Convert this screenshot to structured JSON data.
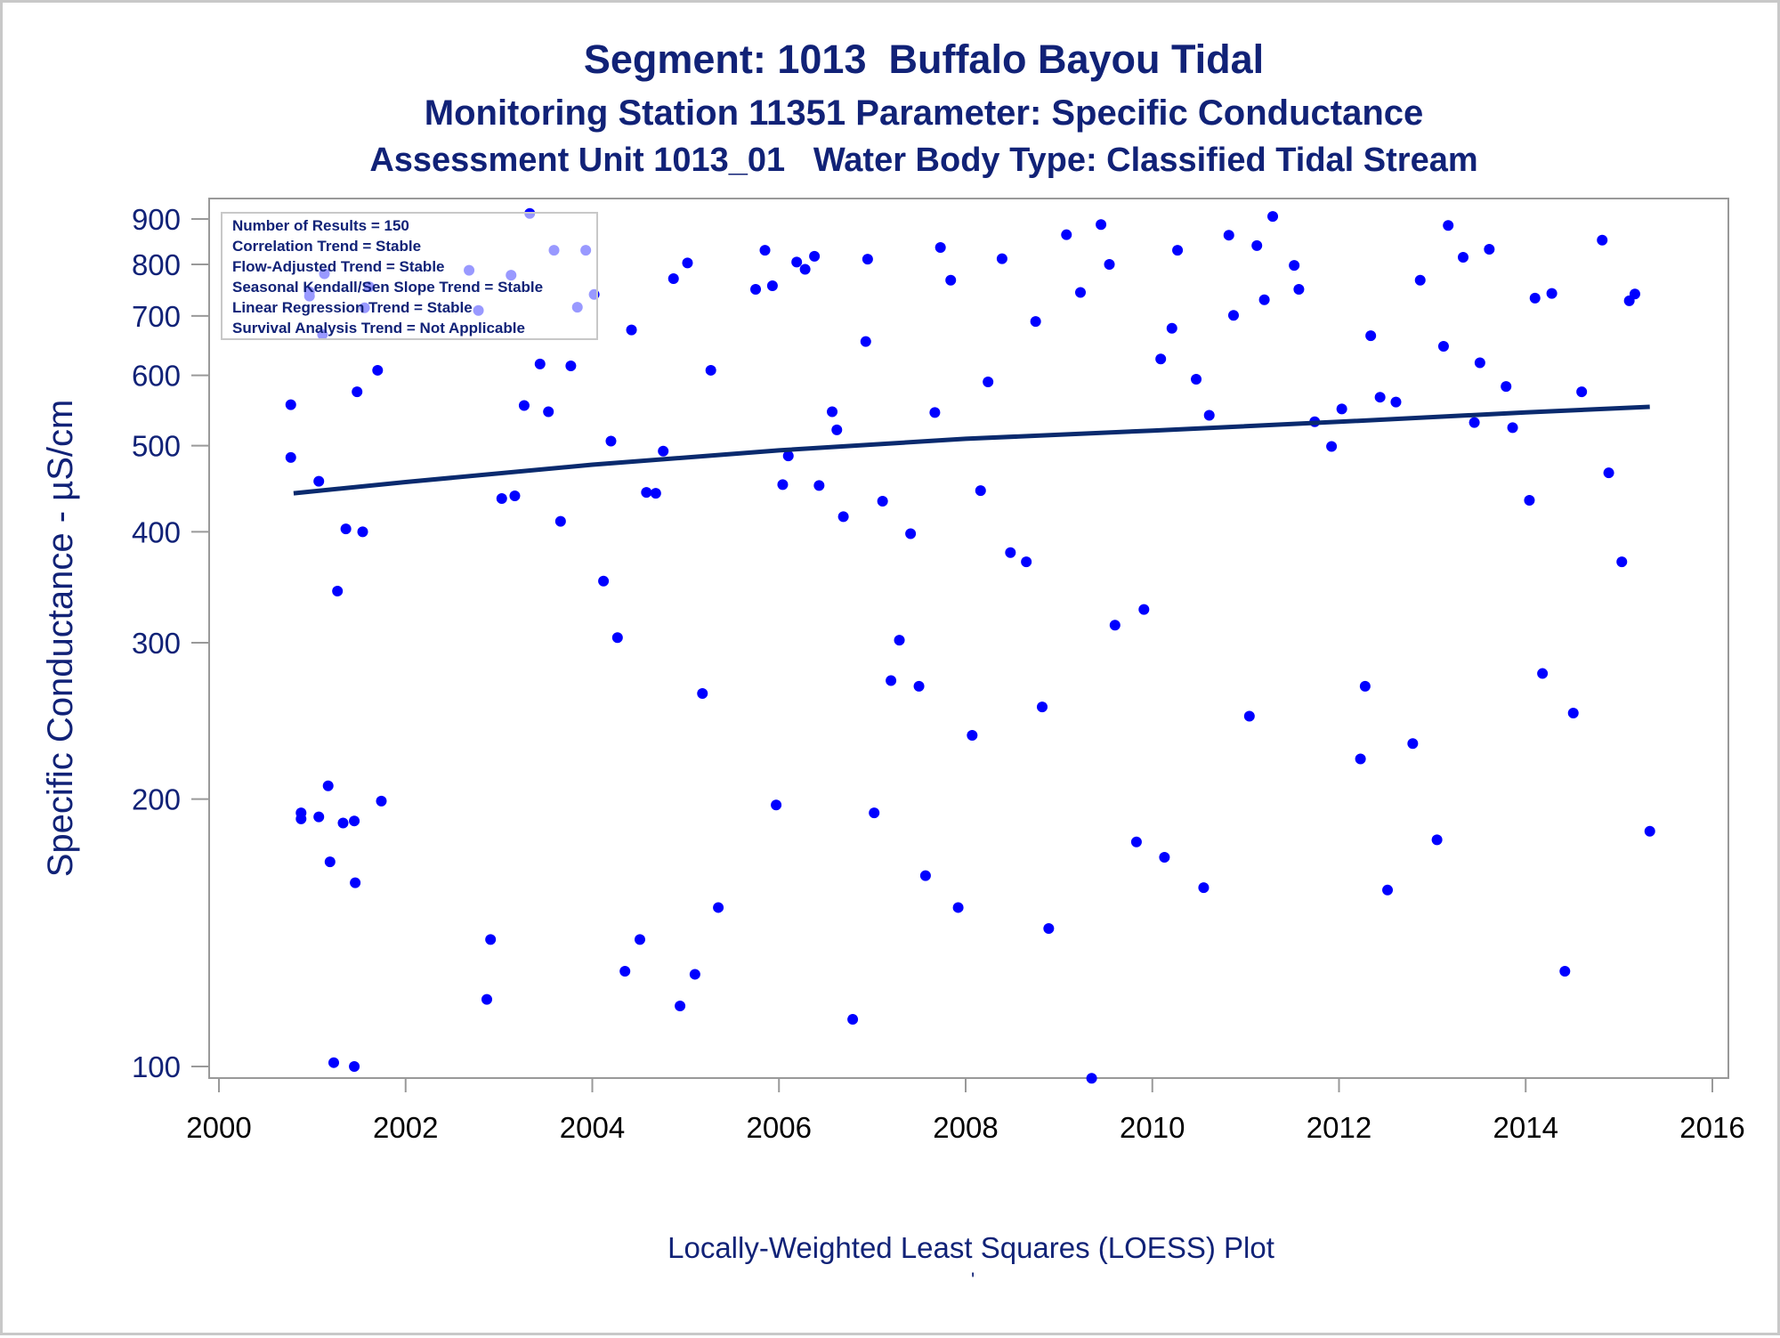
{
  "titles": {
    "line1": "Segment: 1013  Buffalo Bayou Tidal",
    "line2": "Monitoring Station 11351 Parameter: Specific Conductance",
    "line3": "Assessment Unit 1013_01   Water Body Type: Classified Tidal Stream"
  },
  "footnote": "Locally-Weighted Least Squares (LOESS) Plot",
  "footnote_mark": "'",
  "colors": {
    "title": "#112277",
    "points": "#0000ff",
    "trend_line": "#0a2a6e",
    "axis": "#999999"
  },
  "chart_data": {
    "type": "scatter",
    "ylabel": "Specific Conductance -  µS/cm",
    "xlabel": "",
    "y_scale": "log",
    "xlim": [
      2000,
      2016
    ],
    "ylim": [
      97,
      950
    ],
    "x_ticks": [
      2000,
      2002,
      2004,
      2006,
      2008,
      2010,
      2012,
      2014,
      2016
    ],
    "y_ticks": [
      100,
      200,
      300,
      400,
      500,
      600,
      700,
      800,
      900
    ],
    "grid": false,
    "legend_position": "top-left",
    "stats_box": [
      "Number of Results = 150",
      "Correlation Trend = Stable",
      "Flow-Adjusted Trend = Stable",
      "Seasonal Kendall/Sen Slope Trend = Stable",
      "Linear Regression Trend = Stable",
      "Survival Analysis Trend = Not Applicable"
    ],
    "trend_line": {
      "x": [
        2000.8,
        2002.0,
        2004.0,
        2006.0,
        2008.0,
        2010.0,
        2012.0,
        2014.0,
        2015.33
      ],
      "y": [
        442,
        455,
        476,
        494,
        509,
        520,
        532,
        545,
        553
      ]
    },
    "points": [
      [
        2000.77,
        556
      ],
      [
        2000.77,
        485
      ],
      [
        2000.88,
        193
      ],
      [
        2000.88,
        190
      ],
      [
        2000.97,
        745
      ],
      [
        2000.97,
        737
      ],
      [
        2001.07,
        456
      ],
      [
        2001.07,
        191
      ],
      [
        2001.11,
        667
      ],
      [
        2001.13,
        781
      ],
      [
        2001.17,
        207
      ],
      [
        2001.19,
        170
      ],
      [
        2001.23,
        101
      ],
      [
        2001.27,
        343
      ],
      [
        2001.33,
        188
      ],
      [
        2001.36,
        403
      ],
      [
        2001.45,
        100
      ],
      [
        2001.45,
        189
      ],
      [
        2001.46,
        161
      ],
      [
        2001.48,
        575
      ],
      [
        2001.54,
        400
      ],
      [
        2001.56,
        715
      ],
      [
        2001.61,
        755
      ],
      [
        2001.7,
        608
      ],
      [
        2001.74,
        199
      ],
      [
        2002.68,
        788
      ],
      [
        2002.78,
        710
      ],
      [
        2002.87,
        119
      ],
      [
        2002.91,
        139
      ],
      [
        2003.03,
        436
      ],
      [
        2003.13,
        778
      ],
      [
        2003.17,
        439
      ],
      [
        2003.27,
        555
      ],
      [
        2003.33,
        913
      ],
      [
        2003.44,
        618
      ],
      [
        2003.53,
        546
      ],
      [
        2003.59,
        830
      ],
      [
        2003.66,
        411
      ],
      [
        2003.77,
        615
      ],
      [
        2003.84,
        716
      ],
      [
        2003.93,
        830
      ],
      [
        2004.02,
        740
      ],
      [
        2004.12,
        352
      ],
      [
        2004.2,
        506
      ],
      [
        2004.27,
        304
      ],
      [
        2004.35,
        128
      ],
      [
        2004.42,
        675
      ],
      [
        2004.51,
        139
      ],
      [
        2004.58,
        443
      ],
      [
        2004.68,
        442
      ],
      [
        2004.76,
        493
      ],
      [
        2004.87,
        771
      ],
      [
        2004.94,
        117
      ],
      [
        2005.02,
        803
      ],
      [
        2005.1,
        127
      ],
      [
        2005.18,
        263
      ],
      [
        2005.27,
        608
      ],
      [
        2005.35,
        151
      ],
      [
        2005.75,
        750
      ],
      [
        2005.85,
        830
      ],
      [
        2005.93,
        757
      ],
      [
        2005.97,
        197
      ],
      [
        2006.04,
        452
      ],
      [
        2006.1,
        487
      ],
      [
        2006.19,
        805
      ],
      [
        2006.28,
        790
      ],
      [
        2006.38,
        817
      ],
      [
        2006.43,
        451
      ],
      [
        2006.57,
        546
      ],
      [
        2006.62,
        521
      ],
      [
        2006.69,
        416
      ],
      [
        2006.79,
        113
      ],
      [
        2006.93,
        655
      ],
      [
        2006.95,
        811
      ],
      [
        2007.02,
        193
      ],
      [
        2007.11,
        433
      ],
      [
        2007.2,
        272
      ],
      [
        2007.29,
        302
      ],
      [
        2007.41,
        398
      ],
      [
        2007.5,
        268
      ],
      [
        2007.57,
        164
      ],
      [
        2007.67,
        545
      ],
      [
        2007.73,
        836
      ],
      [
        2007.84,
        768
      ],
      [
        2007.92,
        151
      ],
      [
        2008.07,
        236
      ],
      [
        2008.16,
        445
      ],
      [
        2008.24,
        590
      ],
      [
        2008.39,
        812
      ],
      [
        2008.48,
        379
      ],
      [
        2008.65,
        370
      ],
      [
        2008.75,
        690
      ],
      [
        2008.82,
        254
      ],
      [
        2008.89,
        143
      ],
      [
        2009.08,
        864
      ],
      [
        2009.23,
        744
      ],
      [
        2009.35,
        97
      ],
      [
        2009.45,
        887
      ],
      [
        2009.54,
        800
      ],
      [
        2009.6,
        314
      ],
      [
        2009.83,
        179
      ],
      [
        2009.91,
        327
      ],
      [
        2010.09,
        626
      ],
      [
        2010.13,
        172
      ],
      [
        2010.21,
        678
      ],
      [
        2010.27,
        830
      ],
      [
        2010.47,
        594
      ],
      [
        2010.55,
        159
      ],
      [
        2010.61,
        541
      ],
      [
        2010.82,
        863
      ],
      [
        2010.87,
        701
      ],
      [
        2011.04,
        248
      ],
      [
        2011.12,
        840
      ],
      [
        2011.2,
        730
      ],
      [
        2011.29,
        906
      ],
      [
        2011.52,
        798
      ],
      [
        2011.57,
        750
      ],
      [
        2011.74,
        532
      ],
      [
        2011.92,
        499
      ],
      [
        2012.03,
        550
      ],
      [
        2012.23,
        222
      ],
      [
        2012.28,
        268
      ],
      [
        2012.34,
        665
      ],
      [
        2012.44,
        567
      ],
      [
        2012.52,
        158
      ],
      [
        2012.61,
        560
      ],
      [
        2012.79,
        231
      ],
      [
        2012.87,
        768
      ],
      [
        2013.05,
        180
      ],
      [
        2013.12,
        647
      ],
      [
        2013.17,
        885
      ],
      [
        2013.33,
        815
      ],
      [
        2013.45,
        531
      ],
      [
        2013.51,
        620
      ],
      [
        2013.61,
        832
      ],
      [
        2013.79,
        583
      ],
      [
        2013.86,
        524
      ],
      [
        2014.04,
        434
      ],
      [
        2014.1,
        733
      ],
      [
        2014.18,
        277
      ],
      [
        2014.28,
        742
      ],
      [
        2014.42,
        128
      ],
      [
        2014.51,
        250
      ],
      [
        2014.6,
        575
      ],
      [
        2014.82,
        852
      ],
      [
        2014.89,
        466
      ],
      [
        2015.03,
        370
      ],
      [
        2015.11,
        728
      ],
      [
        2015.17,
        741
      ],
      [
        2015.33,
        184
      ]
    ]
  }
}
